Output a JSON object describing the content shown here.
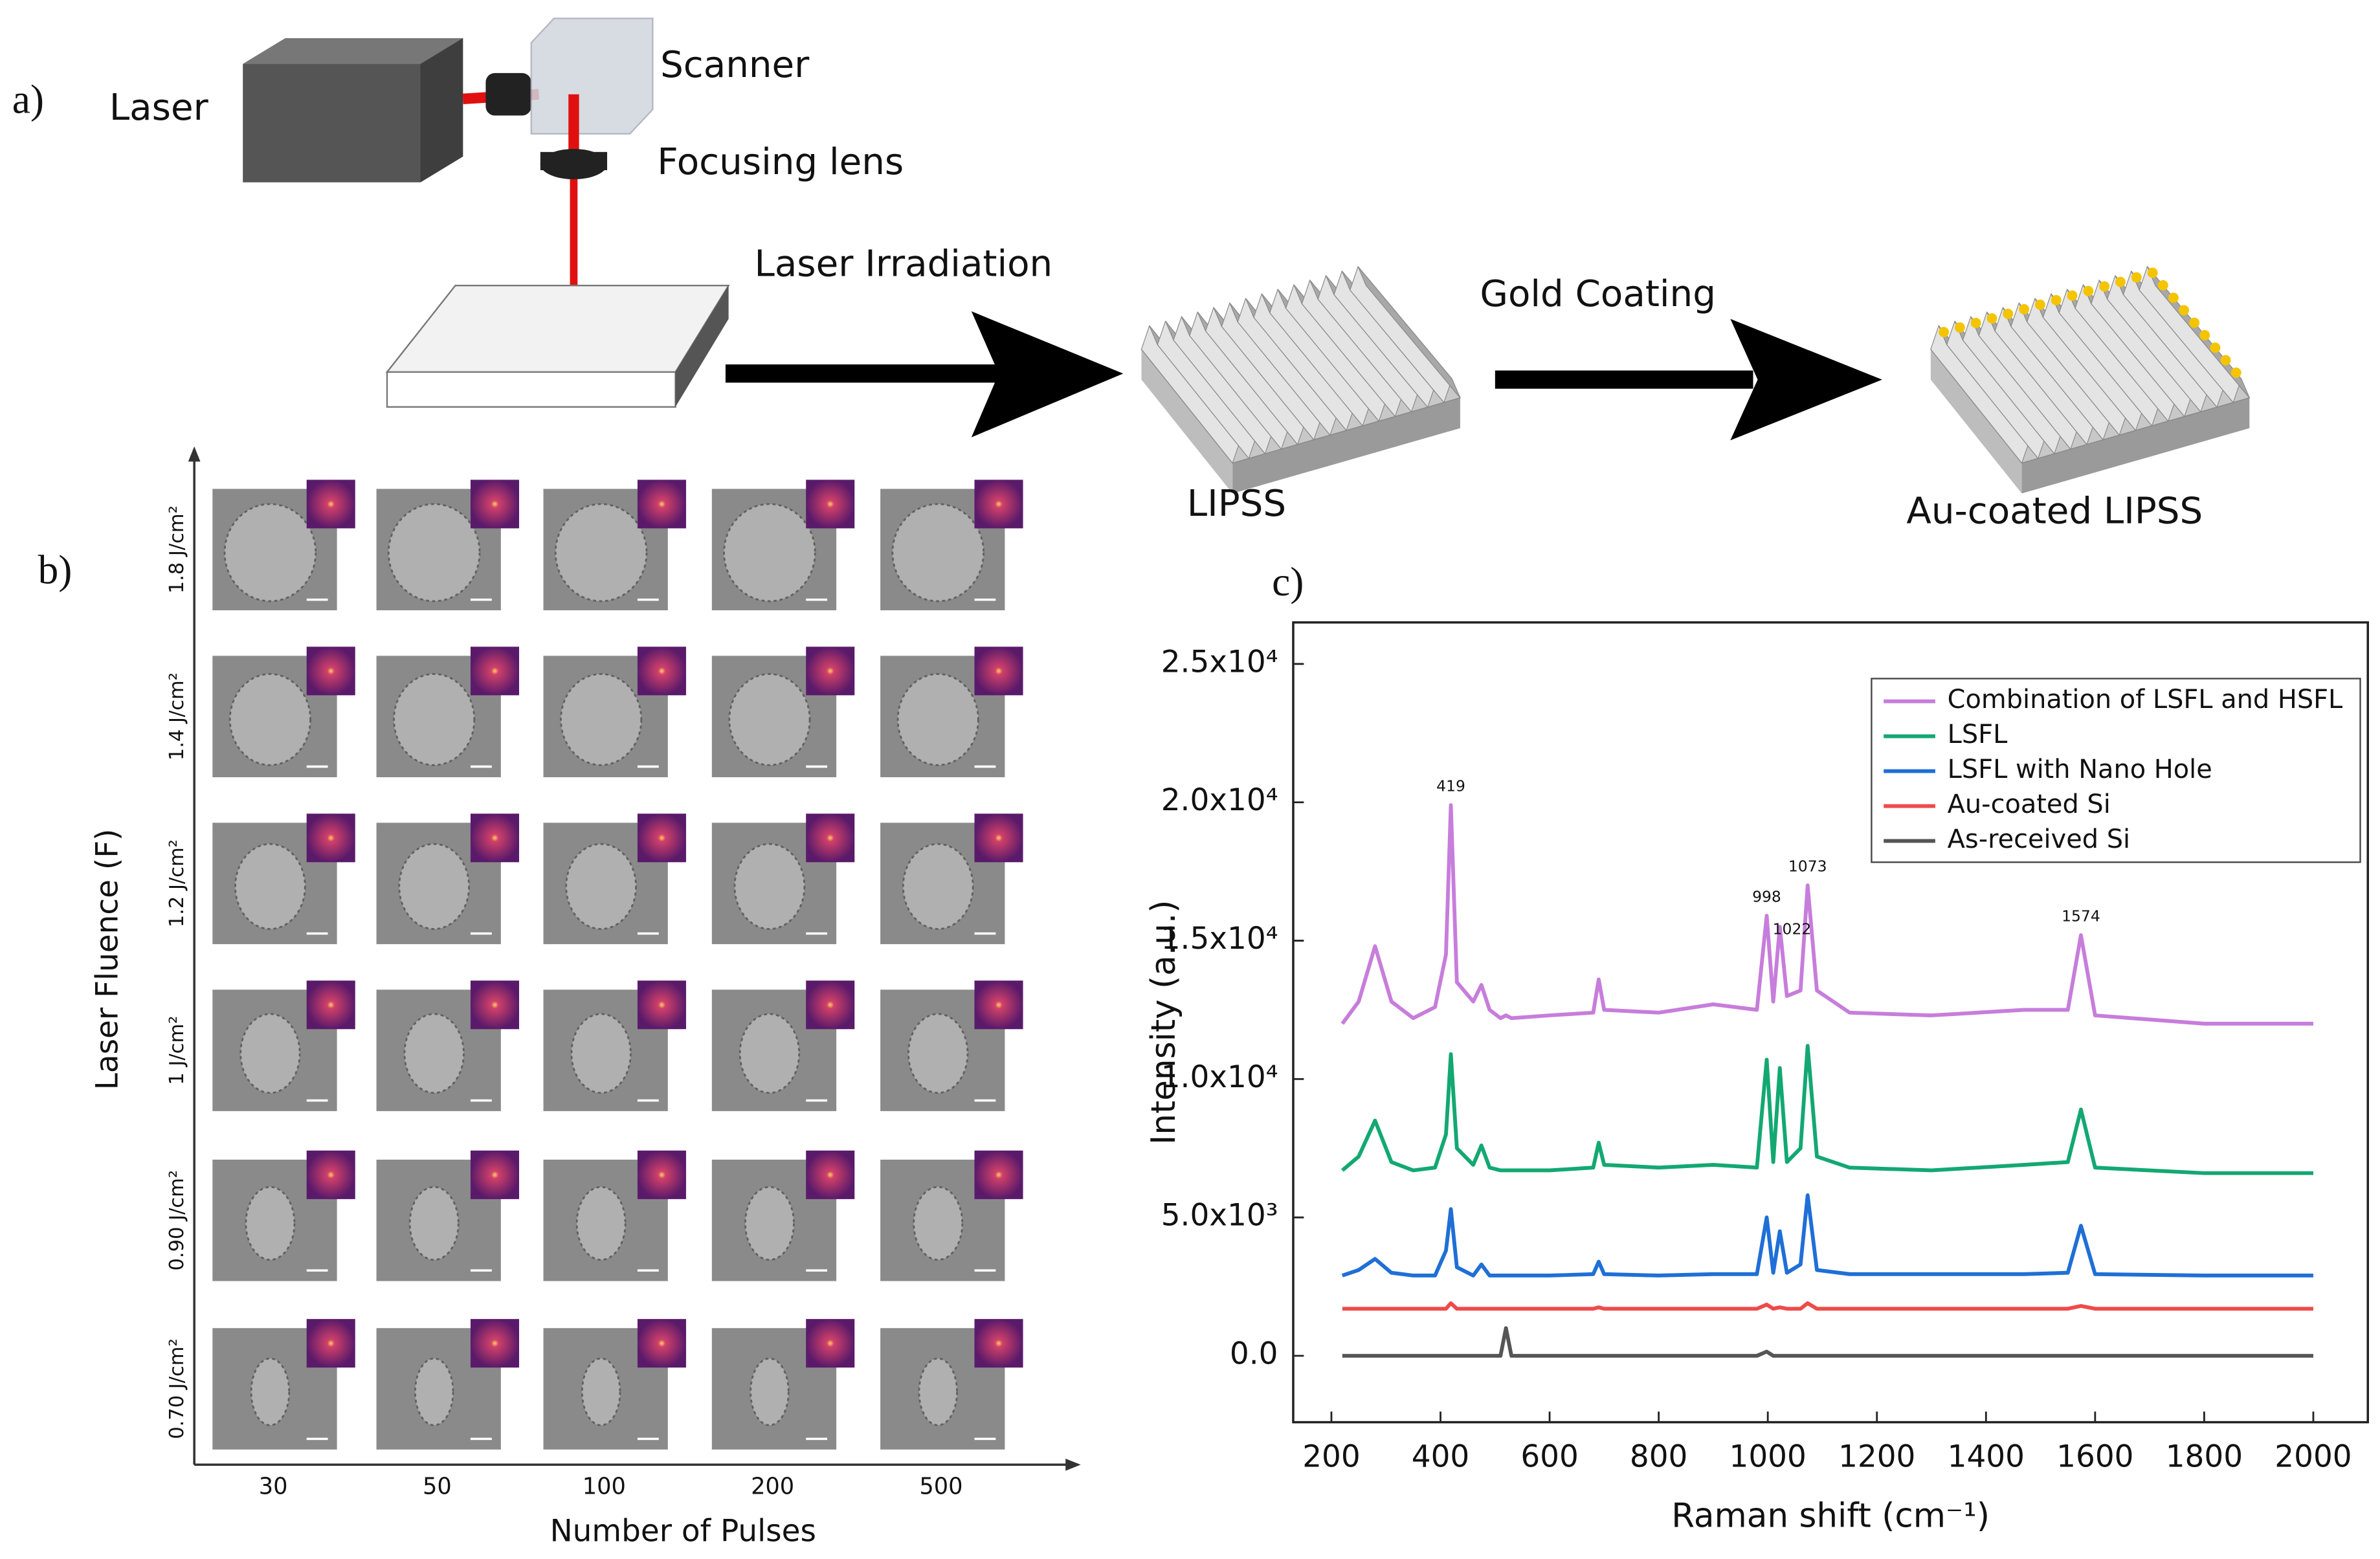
{
  "panel_labels": [
    "a)",
    "b)",
    "c)"
  ],
  "schematic": {
    "laser": "Laser",
    "scanner": "Scanner",
    "lens": "Focusing lens",
    "step1": "Laser Irradiation",
    "step2": "Gold Coating",
    "lipss": "LIPSS",
    "au_lipss": "Au-coated LIPSS"
  },
  "sem_grid": {
    "y_label": "Laser Fluence (F)",
    "x_label": "Number of Pulses",
    "rows": [
      "1.8 J/cm²",
      "1.4 J/cm²",
      "1.2 J/cm²",
      "1 J/cm²",
      "0.90 J/cm²",
      "0.70 J/cm²"
    ],
    "columns": [
      "30",
      "50",
      "100",
      "200",
      "500"
    ]
  },
  "chart_data": {
    "type": "line",
    "xlabel": "Raman shift (cm⁻¹)",
    "ylabel": "Intensity (a.u.)",
    "x": [
      220,
      250,
      280,
      310,
      350,
      390,
      410,
      419,
      430,
      460,
      475,
      490,
      510,
      520,
      530,
      600,
      680,
      690,
      700,
      800,
      900,
      980,
      998,
      1010,
      1022,
      1035,
      1060,
      1073,
      1090,
      1150,
      1300,
      1470,
      1550,
      1574,
      1600,
      1800,
      2000
    ],
    "series": [
      {
        "name": "Combination of LSFL and HSFL",
        "color": "#c77ddb",
        "values": [
          12000,
          12800,
          14800,
          12800,
          12200,
          12600,
          14500,
          19900,
          13500,
          12800,
          13400,
          12500,
          12200,
          12300,
          12200,
          12300,
          12400,
          13600,
          12500,
          12400,
          12700,
          12500,
          15900,
          12800,
          15500,
          13000,
          13200,
          17000,
          13200,
          12400,
          12300,
          12500,
          12500,
          15200,
          12300,
          12000,
          12000
        ]
      },
      {
        "name": "LSFL",
        "color": "#13a872",
        "values": [
          6700,
          7200,
          8500,
          7000,
          6700,
          6800,
          8000,
          10900,
          7500,
          6900,
          7600,
          6800,
          6700,
          6700,
          6700,
          6700,
          6800,
          7700,
          6900,
          6800,
          6900,
          6800,
          10700,
          7000,
          10400,
          7000,
          7500,
          11200,
          7200,
          6800,
          6700,
          6900,
          7000,
          8900,
          6800,
          6600,
          6600
        ]
      },
      {
        "name": "LSFL with Nano Hole",
        "color": "#1f6fd6",
        "values": [
          2900,
          3100,
          3500,
          3000,
          2900,
          2900,
          3800,
          5300,
          3200,
          2900,
          3300,
          2900,
          2900,
          2900,
          2900,
          2900,
          2950,
          3400,
          2950,
          2900,
          2950,
          2950,
          5000,
          3000,
          4500,
          3000,
          3300,
          5800,
          3100,
          2950,
          2950,
          2950,
          3000,
          4700,
          2950,
          2900,
          2900
        ]
      },
      {
        "name": "Au-coated Si",
        "color": "#ef4a4a",
        "values": [
          1700,
          1700,
          1700,
          1700,
          1700,
          1700,
          1700,
          1900,
          1700,
          1700,
          1700,
          1700,
          1700,
          1700,
          1700,
          1700,
          1700,
          1750,
          1700,
          1700,
          1700,
          1700,
          1850,
          1700,
          1750,
          1700,
          1700,
          1900,
          1700,
          1700,
          1700,
          1700,
          1700,
          1800,
          1700,
          1700,
          1700
        ]
      },
      {
        "name": "As-received Si",
        "color": "#555555",
        "values": [
          0,
          0,
          0,
          0,
          0,
          0,
          0,
          0,
          0,
          0,
          0,
          0,
          0,
          1000,
          0,
          0,
          0,
          0,
          0,
          0,
          0,
          0,
          150,
          0,
          0,
          0,
          0,
          0,
          0,
          0,
          0,
          0,
          0,
          0,
          0,
          0,
          0
        ]
      }
    ],
    "peak_labels": [
      419,
      998,
      1022,
      1073,
      1574
    ],
    "xlim": [
      130,
      2100
    ],
    "ylim": [
      -2400,
      26500
    ],
    "xticks": [
      200,
      400,
      600,
      800,
      1000,
      1200,
      1400,
      1600,
      1800,
      2000
    ],
    "yticks": [
      {
        "value": 0,
        "label": "0.0"
      },
      {
        "value": 5000,
        "label": "5.0x10³"
      },
      {
        "value": 10000,
        "label": "1.0x10⁴"
      },
      {
        "value": 15000,
        "label": "1.5x10⁴"
      },
      {
        "value": 20000,
        "label": "2.0x10⁴"
      },
      {
        "value": 25000,
        "label": "2.5x10⁴"
      }
    ],
    "legend": "upper right"
  }
}
